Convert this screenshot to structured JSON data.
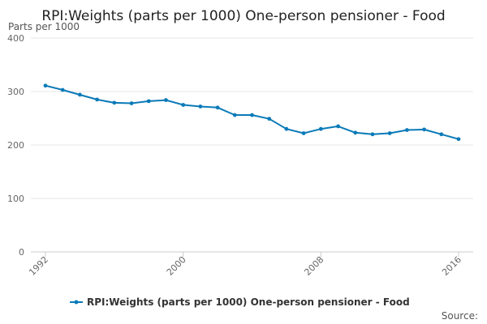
{
  "chart_data": {
    "type": "line",
    "title": "RPI:Weights (parts per 1000) One-person pensioner - Food",
    "ylabel": "Parts per 1000",
    "xlabel": "",
    "ylim": [
      0,
      400
    ],
    "yticks": [
      0,
      100,
      200,
      300,
      400
    ],
    "xticks": [
      1992,
      2000,
      2008,
      2016
    ],
    "grid": true,
    "legend_position": "bottom-center",
    "source_label": "Source:",
    "series": [
      {
        "name": "RPI:Weights (parts per 1000) One-person pensioner - Food",
        "color": "#0a7ab8",
        "x": [
          1992,
          1993,
          1994,
          1995,
          1996,
          1997,
          1998,
          1999,
          2000,
          2001,
          2002,
          2003,
          2004,
          2005,
          2006,
          2007,
          2008,
          2009,
          2010,
          2011,
          2012,
          2013,
          2014,
          2015,
          2016
        ],
        "values": [
          311,
          303,
          294,
          285,
          279,
          278,
          282,
          284,
          275,
          272,
          270,
          256,
          256,
          249,
          230,
          222,
          230,
          235,
          223,
          220,
          222,
          228,
          229,
          220,
          211
        ]
      }
    ]
  }
}
